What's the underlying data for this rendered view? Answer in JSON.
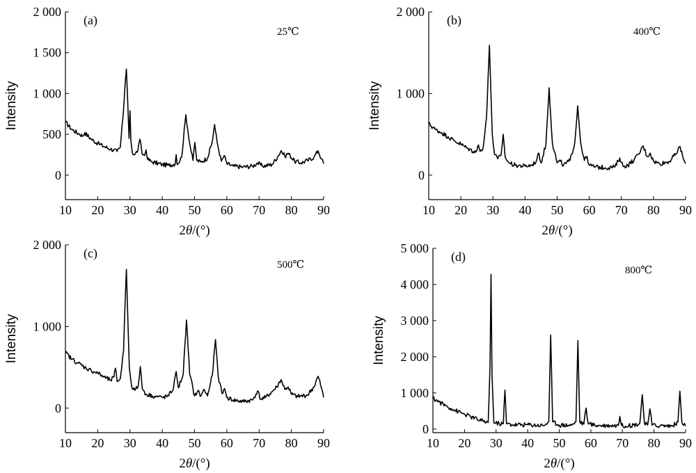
{
  "chart_data": [
    {
      "type": "line",
      "panel_label": "(a)",
      "annotation": "25℃",
      "xlabel_prefix": "2",
      "xlabel_theta": "θ",
      "xlabel_suffix": "/(°)",
      "ylabel": "Intensity",
      "xlim": [
        10,
        90
      ],
      "ylim": [
        -300,
        2000
      ],
      "xticks": [
        10,
        20,
        30,
        40,
        50,
        60,
        70,
        80,
        90
      ],
      "yticks": [
        0,
        500,
        1000,
        1500,
        2000
      ],
      "ytick_labels": [
        "0",
        "500",
        "1 000",
        "1 500",
        "2 000"
      ],
      "series": [
        {
          "x": [
            10,
            12,
            14,
            15.5,
            16,
            18,
            20,
            22,
            24,
            26,
            27,
            28,
            28.5,
            28.9,
            29.3,
            29.7,
            30,
            30.3,
            30.7,
            31.5,
            32.5,
            33.1,
            33.7,
            34.5,
            35,
            35.5,
            37,
            40,
            42,
            44,
            44.3,
            44.6,
            46,
            47.3,
            48.5,
            49.5,
            50.1,
            50.7,
            52,
            54,
            55.5,
            56.2,
            57,
            58.3,
            59.2,
            60,
            62,
            65,
            68,
            69.5,
            71,
            74,
            76,
            76.8,
            78,
            79,
            81,
            83,
            85,
            87,
            88.3,
            89.3,
            90
          ],
          "y": [
            650,
            560,
            510,
            480,
            520,
            440,
            390,
            350,
            320,
            290,
            340,
            800,
            1120,
            1300,
            900,
            450,
            790,
            420,
            280,
            250,
            310,
            440,
            270,
            240,
            310,
            190,
            160,
            130,
            120,
            140,
            250,
            130,
            220,
            740,
            390,
            180,
            400,
            180,
            160,
            210,
            410,
            620,
            400,
            170,
            240,
            140,
            110,
            100,
            110,
            150,
            110,
            130,
            240,
            300,
            230,
            270,
            170,
            150,
            180,
            220,
            300,
            200,
            140
          ]
        }
      ]
    },
    {
      "type": "line",
      "panel_label": "(b)",
      "annotation": "400℃",
      "xlabel_prefix": "2",
      "xlabel_theta": "θ",
      "xlabel_suffix": "/(°)",
      "ylabel": "Intensity",
      "xlim": [
        10,
        90
      ],
      "ylim": [
        -300,
        2000
      ],
      "xticks": [
        10,
        20,
        30,
        40,
        50,
        60,
        70,
        80,
        90
      ],
      "yticks": [
        0,
        1000,
        2000
      ],
      "ytick_labels": [
        "0",
        "1 000",
        "2 000"
      ],
      "series": [
        {
          "x": [
            10,
            12,
            14,
            16,
            18,
            20,
            22,
            24,
            25,
            25.5,
            26,
            27,
            28,
            28.5,
            28.9,
            29.3,
            29.8,
            30.5,
            31.5,
            32.5,
            33.2,
            33.8,
            35,
            37,
            40,
            42,
            43.5,
            44.3,
            45,
            46.5,
            47.5,
            48.5,
            50,
            51,
            52,
            54,
            55.5,
            56.4,
            57.3,
            58.5,
            59.3,
            60,
            62,
            65,
            68,
            69.5,
            70.5,
            72,
            74,
            75.5,
            76.8,
            78,
            79,
            80,
            82,
            85,
            87,
            88.3,
            89.3,
            90
          ],
          "y": [
            630,
            560,
            520,
            470,
            420,
            380,
            330,
            290,
            300,
            370,
            290,
            350,
            700,
            1200,
            1590,
            1100,
            500,
            250,
            200,
            240,
            500,
            220,
            150,
            120,
            110,
            120,
            170,
            270,
            150,
            380,
            1070,
            400,
            150,
            170,
            120,
            180,
            400,
            850,
            400,
            180,
            230,
            120,
            100,
            90,
            100,
            210,
            110,
            120,
            190,
            260,
            360,
            230,
            270,
            170,
            140,
            170,
            260,
            350,
            200,
            140
          ]
        }
      ]
    },
    {
      "type": "line",
      "panel_label": "(c)",
      "annotation": "500℃",
      "xlabel_prefix": "2",
      "xlabel_theta": "θ",
      "xlabel_suffix": "/(°)",
      "ylabel": "Intensity",
      "xlim": [
        10,
        90
      ],
      "ylim": [
        -300,
        2000
      ],
      "xticks": [
        10,
        20,
        30,
        40,
        50,
        60,
        70,
        80,
        90
      ],
      "yticks": [
        0,
        1000,
        2000
      ],
      "ytick_labels": [
        "0",
        "1 000",
        "2 000"
      ],
      "series": [
        {
          "x": [
            10,
            12,
            14,
            16,
            18,
            20,
            22,
            24,
            25,
            25.5,
            26,
            27,
            28,
            28.5,
            28.9,
            29.3,
            29.8,
            30.5,
            31.5,
            32.5,
            33.2,
            33.8,
            35,
            37,
            40,
            42,
            43.5,
            44.3,
            45,
            46.5,
            47.5,
            48.5,
            50,
            51,
            52,
            53,
            54,
            55.5,
            56.5,
            57.3,
            58.5,
            59.3,
            60,
            62,
            65,
            68,
            69.5,
            70.5,
            72,
            74,
            75.5,
            76.8,
            78,
            79,
            80,
            82,
            85,
            87,
            88.3,
            89.3,
            90
          ],
          "y": [
            680,
            600,
            550,
            500,
            460,
            430,
            380,
            340,
            380,
            490,
            330,
            360,
            700,
            1300,
            1700,
            1150,
            500,
            270,
            220,
            260,
            510,
            240,
            170,
            150,
            130,
            150,
            250,
            450,
            250,
            420,
            1080,
            420,
            150,
            210,
            150,
            230,
            150,
            400,
            840,
            400,
            180,
            240,
            130,
            100,
            80,
            100,
            210,
            110,
            130,
            200,
            260,
            350,
            230,
            260,
            170,
            140,
            160,
            260,
            390,
            250,
            130
          ]
        }
      ]
    },
    {
      "type": "line",
      "panel_label": "(d)",
      "annotation": "800℃",
      "xlabel_prefix": "2",
      "xlabel_theta": "θ",
      "xlabel_suffix": "/(°)",
      "ylabel": "Intensity",
      "xlim": [
        10,
        90
      ],
      "ylim": [
        -100,
        5000
      ],
      "xticks": [
        10,
        20,
        30,
        40,
        50,
        60,
        70,
        80,
        90
      ],
      "yticks": [
        0,
        1000,
        2000,
        3000,
        4000,
        5000
      ],
      "ytick_labels": [
        "0",
        "1 000",
        "2 000",
        "3 000",
        "4 000",
        "5 000"
      ],
      "series": [
        {
          "x": [
            10,
            12,
            14,
            16,
            18,
            20,
            22,
            24,
            26,
            27.5,
            28.1,
            28.4,
            28.7,
            29.3,
            31,
            32.3,
            32.8,
            33.3,
            35,
            40,
            45,
            46.7,
            47.3,
            47.9,
            50,
            54,
            55.3,
            55.9,
            56.5,
            57.8,
            58.5,
            59.2,
            62,
            66,
            68.7,
            69.2,
            69.7,
            72,
            75.5,
            76.3,
            77,
            78,
            78.7,
            79.4,
            82,
            86,
            87.6,
            88.2,
            88.8,
            90
          ],
          "y": [
            850,
            750,
            650,
            560,
            480,
            410,
            340,
            270,
            210,
            180,
            1800,
            4280,
            1500,
            170,
            150,
            150,
            1080,
            150,
            120,
            120,
            100,
            200,
            2600,
            200,
            110,
            110,
            200,
            2450,
            200,
            140,
            580,
            140,
            100,
            100,
            100,
            350,
            100,
            90,
            150,
            950,
            150,
            110,
            560,
            110,
            90,
            90,
            200,
            1050,
            200,
            80
          ]
        }
      ]
    }
  ]
}
